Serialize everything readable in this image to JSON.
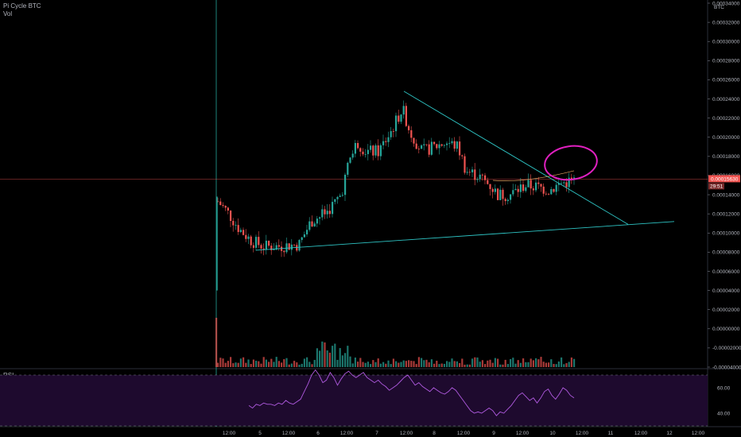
{
  "header": {
    "symbol": "Pi Cycle BTC",
    "volume_label": "Vol"
  },
  "rsi_label": "RSI",
  "currency_badge": "BTC",
  "colors": {
    "background": "#000000",
    "up": "#26a69a",
    "down": "#ef5350",
    "trendline": "#2ec4c4",
    "circle": "#e020c0",
    "rsi_line": "#b05ae0",
    "rsi_band": "#1e0a2e",
    "price_line": "#ef5350",
    "crosshair": "#26a69a"
  },
  "chart_data": [
    {
      "type": "candlestick",
      "title": "Pi Cycle BTC",
      "y_ticks": [
        "0.00034000",
        "0.00032000",
        "0.00030000",
        "0.00028000",
        "0.00026000",
        "0.00024000",
        "0.00022000",
        "0.00020000",
        "0.00018000",
        "0.00016000",
        "0.00014000",
        "0.00012000",
        "0.00010000",
        "0.00008000",
        "0.00006000",
        "0.00004000",
        "0.00002000",
        "0.00000000",
        "-0.00002000",
        "-0.00004000"
      ],
      "ylim": [
        -4e-05,
        0.00034
      ],
      "x_ticks": [
        "12:00",
        "5",
        "12:00",
        "6",
        "12:00",
        "7",
        "12:00",
        "8",
        "12:00",
        "9",
        "12:00",
        "10",
        "12:00",
        "11",
        "12:00",
        "12",
        "12:00"
      ],
      "last_price": "0.00015630",
      "countdown": "29:51",
      "annotations": [
        "descending trendline from 0.000248 to 0.000109",
        "ascending trendline from 0.000082 to 0.000112",
        "circled area around last candles"
      ]
    },
    {
      "type": "line",
      "title": "RSI",
      "y_ticks": [
        "60.00",
        "40.00"
      ],
      "ylim": [
        30,
        75
      ],
      "band": [
        30,
        70
      ],
      "values": [
        46,
        44,
        47,
        46,
        48,
        47,
        47,
        46,
        48,
        47,
        50,
        48,
        47,
        49,
        51,
        57,
        63,
        70,
        74,
        70,
        64,
        66,
        72,
        68,
        62,
        67,
        71,
        73,
        70,
        68,
        70,
        72,
        68,
        66,
        64,
        66,
        63,
        61,
        58,
        60,
        62,
        65,
        68,
        70,
        66,
        62,
        64,
        61,
        59,
        57,
        60,
        58,
        56,
        55,
        57,
        60,
        58,
        54,
        50,
        46,
        42,
        40,
        41,
        40,
        42,
        44,
        42,
        38,
        41,
        40,
        43,
        46,
        50,
        54,
        56,
        53,
        50,
        52,
        48,
        52,
        57,
        59,
        54,
        51,
        55,
        60,
        58,
        54,
        52
      ]
    }
  ]
}
